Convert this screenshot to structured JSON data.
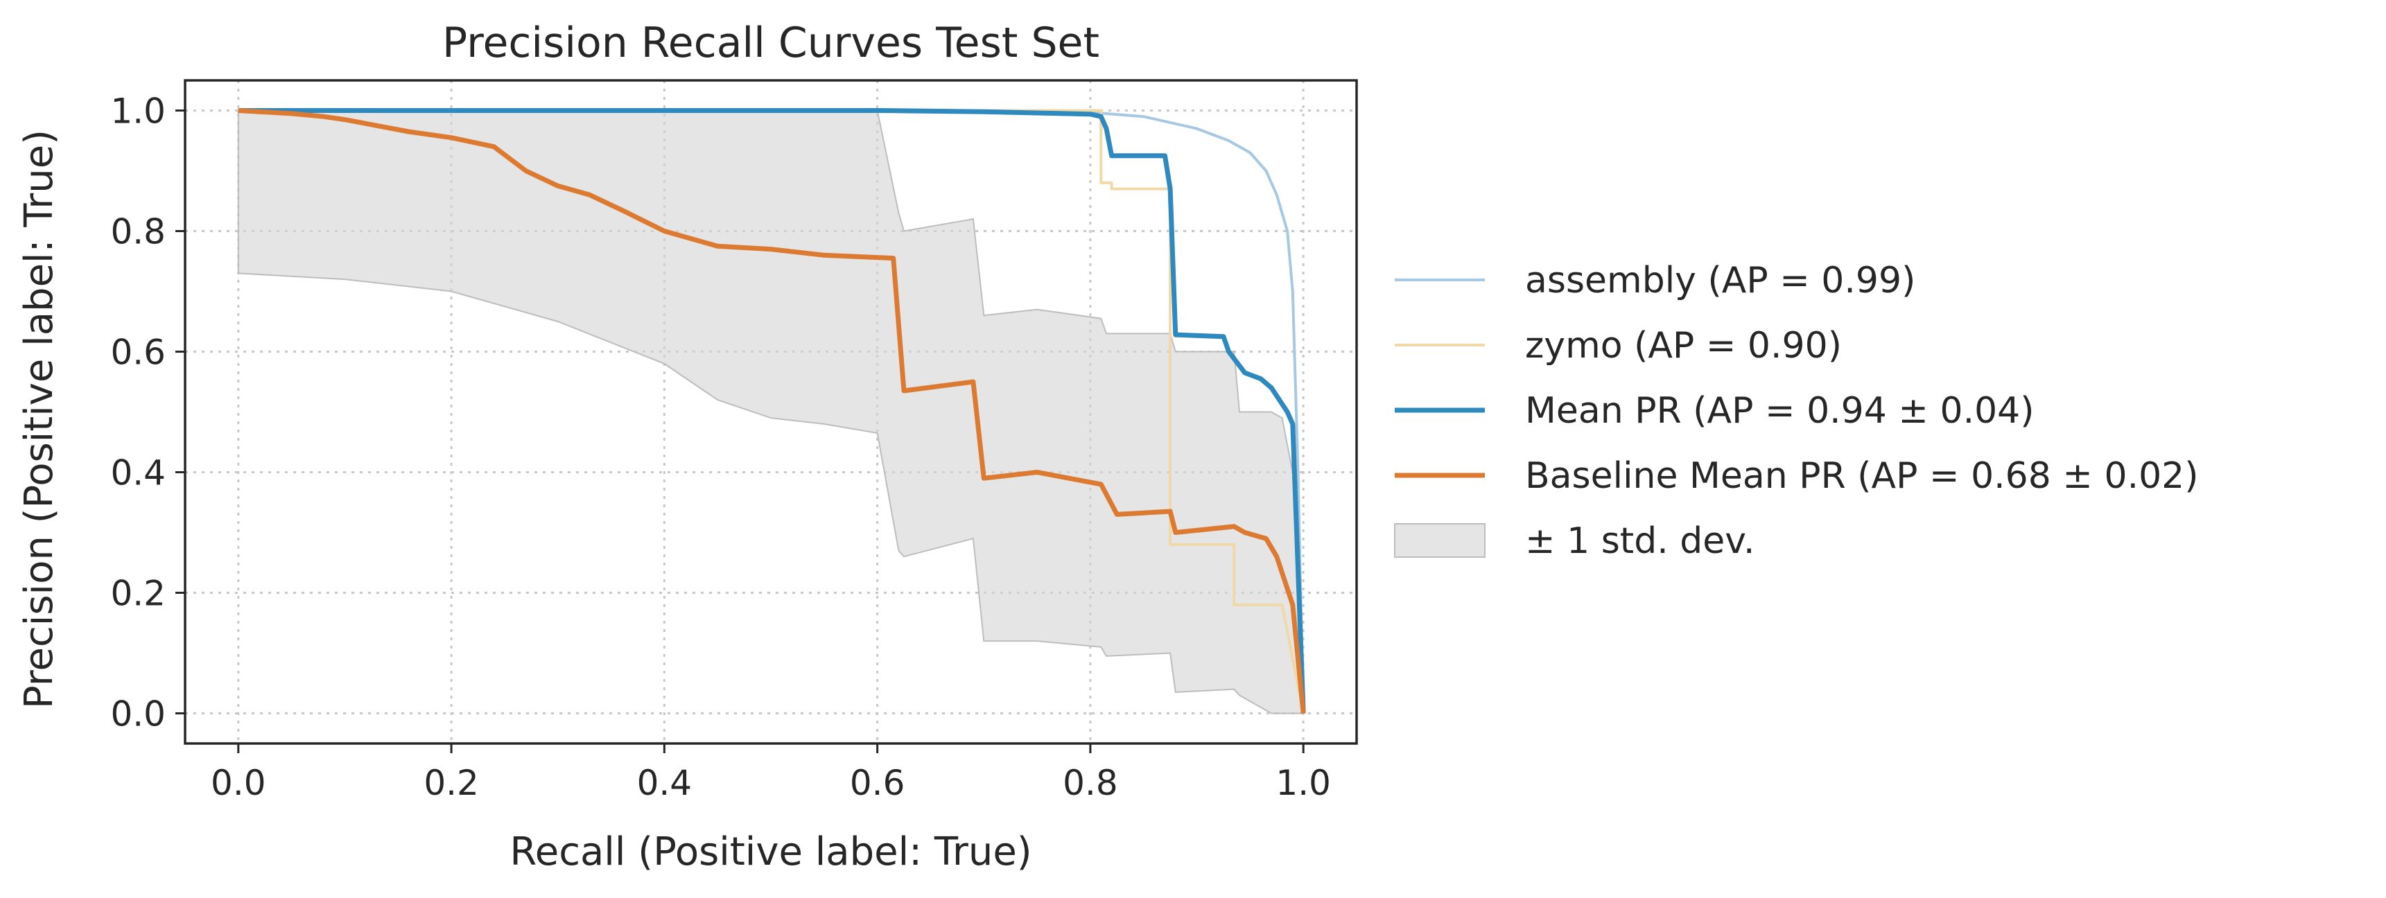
{
  "chart_data": {
    "type": "line",
    "title": "Precision Recall Curves Test Set",
    "xlabel": "Recall (Positive label: True)",
    "ylabel": "Precision (Positive label: True)",
    "xlim": [
      -0.05,
      1.05
    ],
    "ylim": [
      -0.05,
      1.05
    ],
    "xticks": [
      "0.0",
      "0.2",
      "0.4",
      "0.6",
      "0.8",
      "1.0"
    ],
    "yticks": [
      "0.0",
      "0.2",
      "0.4",
      "0.6",
      "0.8",
      "1.0"
    ],
    "grid": true,
    "legend_position": "outside right",
    "series": [
      {
        "name": "assembly (AP = 0.99)",
        "color": "#a6c8e2",
        "x": [
          0.0,
          0.1,
          0.2,
          0.3,
          0.4,
          0.5,
          0.6,
          0.7,
          0.8,
          0.85,
          0.9,
          0.93,
          0.95,
          0.965,
          0.975,
          0.985,
          0.99,
          0.995,
          1.0
        ],
        "y": [
          1.0,
          1.0,
          1.0,
          1.0,
          1.0,
          1.0,
          1.0,
          1.0,
          0.997,
          0.99,
          0.97,
          0.95,
          0.93,
          0.9,
          0.86,
          0.8,
          0.7,
          0.4,
          0.0
        ]
      },
      {
        "name": "zymo (AP = 0.90)",
        "color": "#f0d9a7",
        "x": [
          0.0,
          0.1,
          0.2,
          0.3,
          0.4,
          0.5,
          0.6,
          0.7,
          0.81,
          0.81,
          0.82,
          0.82,
          0.875,
          0.875,
          0.935,
          0.935,
          0.97,
          0.98,
          1.0
        ],
        "y": [
          1.0,
          1.0,
          1.0,
          1.0,
          1.0,
          1.0,
          1.0,
          1.0,
          1.0,
          0.88,
          0.88,
          0.87,
          0.87,
          0.28,
          0.28,
          0.18,
          0.18,
          0.18,
          0.0
        ]
      },
      {
        "name": "Mean PR (AP = 0.94 ± 0.04)",
        "color": "#2e89be",
        "x": [
          0.0,
          0.1,
          0.2,
          0.3,
          0.4,
          0.5,
          0.6,
          0.7,
          0.75,
          0.8,
          0.81,
          0.815,
          0.82,
          0.87,
          0.875,
          0.88,
          0.925,
          0.93,
          0.945,
          0.96,
          0.97,
          0.985,
          0.99,
          1.0
        ],
        "y": [
          1.0,
          1.0,
          1.0,
          1.0,
          1.0,
          1.0,
          1.0,
          0.998,
          0.996,
          0.994,
          0.99,
          0.97,
          0.925,
          0.925,
          0.87,
          0.628,
          0.625,
          0.6,
          0.565,
          0.555,
          0.54,
          0.5,
          0.48,
          0.0
        ]
      },
      {
        "name": "Baseline Mean PR (AP = 0.68 ± 0.02)",
        "color": "#dd7a32",
        "x": [
          0.0,
          0.05,
          0.08,
          0.1,
          0.13,
          0.16,
          0.2,
          0.24,
          0.27,
          0.3,
          0.33,
          0.36,
          0.4,
          0.45,
          0.5,
          0.55,
          0.615,
          0.625,
          0.69,
          0.7,
          0.75,
          0.81,
          0.825,
          0.875,
          0.88,
          0.935,
          0.945,
          0.965,
          0.975,
          0.99,
          1.0
        ],
        "y": [
          1.0,
          0.995,
          0.99,
          0.985,
          0.975,
          0.965,
          0.955,
          0.94,
          0.9,
          0.875,
          0.86,
          0.835,
          0.8,
          0.775,
          0.77,
          0.76,
          0.755,
          0.535,
          0.55,
          0.39,
          0.4,
          0.38,
          0.33,
          0.335,
          0.3,
          0.31,
          0.3,
          0.29,
          0.26,
          0.18,
          0.0
        ]
      }
    ],
    "std_band": {
      "name": "± 1 std. dev.",
      "color": "#d3d3d3",
      "x": [
        0.0,
        0.1,
        0.2,
        0.3,
        0.4,
        0.45,
        0.5,
        0.55,
        0.6,
        0.62,
        0.625,
        0.69,
        0.7,
        0.75,
        0.81,
        0.815,
        0.875,
        0.88,
        0.935,
        0.94,
        0.97,
        0.98,
        0.99,
        1.0
      ],
      "upper": [
        1.0,
        1.0,
        1.0,
        1.0,
        1.0,
        1.0,
        1.0,
        1.0,
        1.0,
        0.83,
        0.8,
        0.82,
        0.66,
        0.67,
        0.655,
        0.63,
        0.63,
        0.6,
        0.6,
        0.5,
        0.5,
        0.49,
        0.4,
        0.0
      ],
      "lower": [
        0.73,
        0.72,
        0.7,
        0.65,
        0.58,
        0.52,
        0.49,
        0.48,
        0.465,
        0.27,
        0.26,
        0.29,
        0.12,
        0.12,
        0.11,
        0.095,
        0.1,
        0.035,
        0.04,
        0.03,
        0.0,
        0.0,
        0.0,
        0.0
      ]
    }
  }
}
